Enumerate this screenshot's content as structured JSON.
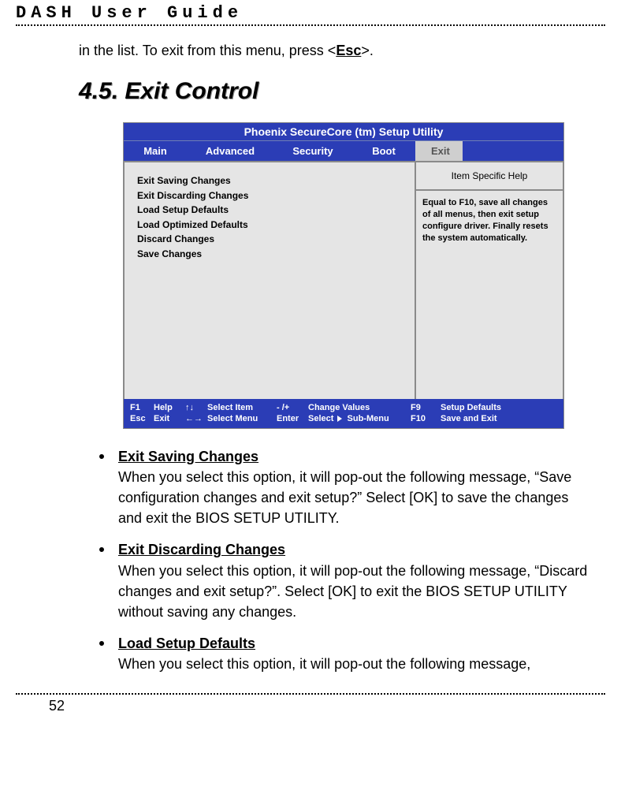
{
  "page": {
    "running_head": "DASH  User  Guide",
    "page_number": "52"
  },
  "intro": {
    "prefix": "in the list. To exit from this menu, press <",
    "esc": "Esc",
    "suffix": ">."
  },
  "heading": "4.5. Exit Control",
  "bios": {
    "title": "Phoenix SecureCore (tm) Setup Utility",
    "tabs": {
      "main": "Main",
      "advanced": "Advanced",
      "security": "Security",
      "boot": "Boot",
      "exit": "Exit"
    },
    "active_tab": "exit",
    "menu_items": [
      "Exit Saving Changes",
      "Exit Discarding Changes",
      "Load Setup Defaults",
      "Load Optimized Defaults",
      "Discard Changes",
      "Save Changes"
    ],
    "help": {
      "title": "Item Specific Help",
      "body": "Equal to F10, save all changes of all menus, then exit setup configure driver. Finally resets the system automatically."
    },
    "footer": {
      "f1": "F1",
      "help": "Help",
      "updown": "↑↓",
      "select_item": "Select Item",
      "pm": "- /+",
      "change_values": "Change Values",
      "f9": "F9",
      "setup_defaults": "Setup Defaults",
      "esc": "Esc",
      "exit": "Exit",
      "lr": "←→",
      "select_menu": "Select Menu",
      "enter": "Enter",
      "select_sub": "Select ",
      "submenu": " Sub-Menu",
      "f10": "F10",
      "save_exit": "Save and Exit"
    },
    "colors": {
      "bar": "#2b3db6",
      "panel": "#e5e5e5",
      "active_tab": "#cfcfcf"
    }
  },
  "bullets": [
    {
      "title": "Exit Saving Changes",
      "body": "When you select this option, it will pop-out the following message, “Save configuration changes and exit setup?” Select [OK] to save the changes and exit the BIOS SETUP UTILITY."
    },
    {
      "title": "Exit Discarding Changes",
      "body": "When you select this option, it will pop-out the following message, “Discard changes and exit setup?”. Select [OK] to exit the BIOS SETUP UTILITY without saving any changes."
    },
    {
      "title": "Load Setup Defaults",
      "body": "When you select this option, it will pop-out the following message,"
    }
  ]
}
